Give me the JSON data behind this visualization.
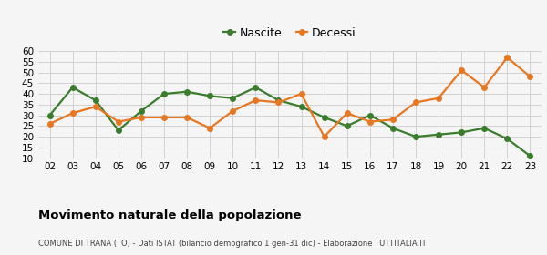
{
  "years": [
    "02",
    "03",
    "04",
    "05",
    "06",
    "07",
    "08",
    "09",
    "10",
    "11",
    "12",
    "13",
    "14",
    "15",
    "16",
    "17",
    "18",
    "19",
    "20",
    "21",
    "22",
    "23"
  ],
  "nascite": [
    30,
    43,
    37,
    23,
    32,
    40,
    41,
    39,
    38,
    43,
    37,
    34,
    29,
    25,
    30,
    24,
    20,
    21,
    22,
    24,
    19,
    11
  ],
  "decessi": [
    26,
    31,
    34,
    27,
    29,
    29,
    29,
    24,
    32,
    37,
    36,
    40,
    20,
    31,
    27,
    28,
    36,
    38,
    51,
    43,
    57,
    48
  ],
  "nascite_color": "#3a7d2c",
  "decessi_color": "#e87722",
  "ylim": [
    10,
    60
  ],
  "yticks": [
    10,
    15,
    20,
    25,
    30,
    35,
    40,
    45,
    50,
    55,
    60
  ],
  "grid_color": "#cccccc",
  "bg_color": "#f5f5f5",
  "title": "Movimento naturale della popolazione",
  "subtitle": "COMUNE DI TRANA (TO) - Dati ISTAT (bilancio demografico 1 gen-31 dic) - Elaborazione TUTTITALIA.IT",
  "legend_nascite": "Nascite",
  "legend_decessi": "Decessi",
  "marker_size": 4,
  "line_width": 1.6
}
